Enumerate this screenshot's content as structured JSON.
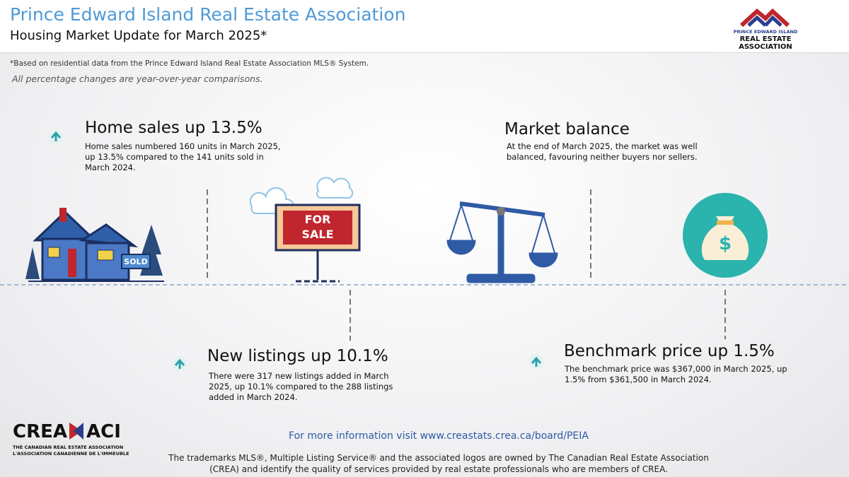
{
  "header": {
    "title": "Prince Edward Island Real Estate Association",
    "subtitle": "Housing Market Update for March 2025*"
  },
  "logo": {
    "line1": "PRINCE EDWARD ISLAND",
    "line2": "REAL ESTATE",
    "line3": "ASSOCIATION"
  },
  "notes": [
    "*Based on residential data from the Prince Edward Island Real Estate Association MLS® System.",
    "All percentage changes are year-over-year comparisons."
  ],
  "sections": [
    {
      "title": "Home sales up 13.5%",
      "body": "Home sales numbered 160 units in March 2025, up 13.5% compared to the 141 units sold in March 2024."
    },
    {
      "title": "Market balance",
      "body": "At the end of March 2025, the market was well balanced, favouring neither buyers nor sellers."
    },
    {
      "title": "New listings up 10.1%",
      "body": "There were 317 new listings added in March 2025, up 10.1% compared to the 288 listings added in March 2024."
    },
    {
      "title": "Benchmark price up 1.5%",
      "body": "The benchmark price was $367,000 in March 2025, up 1.5% from $361,500 in March 2024."
    }
  ],
  "illustrations": {
    "sold_sign": "SOLD",
    "for_sale_sign": [
      "FOR",
      "SALE"
    ],
    "money_bag": "$"
  },
  "crea_logo": {
    "left": "CREA",
    "right": "ACI",
    "english": "THE CANADIAN REAL ESTATE ASSOCIATION",
    "french": "L'ASSOCIATION CANADIENNE DE L'IMMEUBLE"
  },
  "footer": {
    "link": "For more information visit www.creastats.crea.ca/board/PEIA",
    "trademark": [
      "The trademarks MLS®, Multiple Listing Service® and the associated logos are owned by The Canadian Real Estate Association",
      "(CREA) and identify the quality of services provided by real estate professionals who are members of CREA."
    ]
  }
}
